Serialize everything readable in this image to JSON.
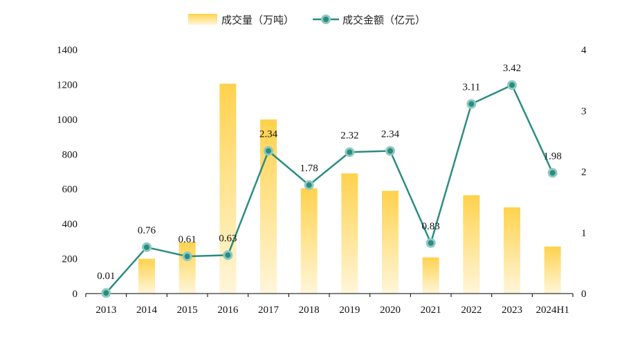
{
  "chart_data": {
    "type": "bar+line",
    "categories": [
      "2013",
      "2014",
      "2015",
      "2016",
      "2017",
      "2018",
      "2019",
      "2020",
      "2021",
      "2022",
      "2023",
      "2024H1"
    ],
    "series": [
      {
        "name": "成交量（万吨）",
        "type": "bar",
        "axis": "left",
        "values": [
          0,
          200,
          295,
          1205,
          1000,
          605,
          690,
          590,
          208,
          565,
          495,
          270
        ]
      },
      {
        "name": "成交金额（亿元）",
        "type": "line",
        "axis": "right",
        "values": [
          0.01,
          0.76,
          0.61,
          0.63,
          2.34,
          1.78,
          2.32,
          2.34,
          0.83,
          3.11,
          3.42,
          1.98
        ],
        "labels": [
          "0.01",
          "0.76",
          "0.61",
          "0.63",
          "2.34",
          "1.78",
          "2.32",
          "2.34",
          "0.83",
          "3.11",
          "3.42",
          "1.98"
        ]
      }
    ],
    "y_left": {
      "ylim": [
        0,
        1400
      ],
      "ticks": [
        0,
        200,
        400,
        600,
        800,
        1000,
        1200,
        1400
      ]
    },
    "y_right": {
      "ylim": [
        0,
        4
      ],
      "ticks": [
        0,
        1,
        2,
        3,
        4
      ]
    },
    "legend_position": "top-center",
    "grid": false,
    "colors": {
      "bar_top": "#FFD24D",
      "bar_bottom": "#FFF6DA",
      "line": "#2A8C80",
      "marker_halo": "#8FC9C0",
      "axis": "#000000"
    }
  }
}
